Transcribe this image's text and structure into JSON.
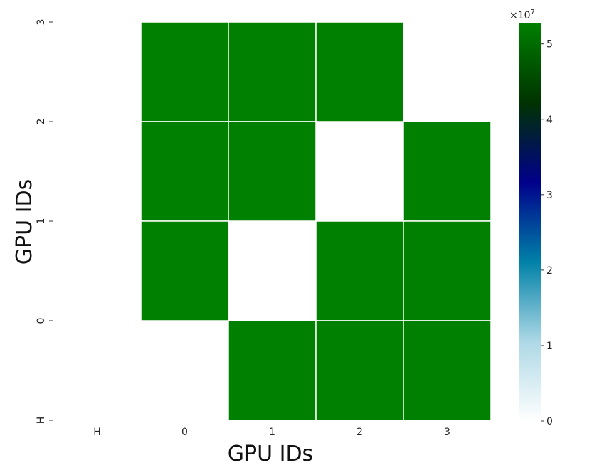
{
  "chart_data": {
    "type": "heatmap",
    "xlabel": "GPU IDs",
    "ylabel": "GPU IDs",
    "x_categories": [
      "H",
      "0",
      "1",
      "2",
      "3"
    ],
    "y_categories": [
      "H",
      "0",
      "1",
      "2",
      "3"
    ],
    "cells": [
      {
        "x": "0",
        "y": "3",
        "value": 52800000
      },
      {
        "x": "1",
        "y": "3",
        "value": 52800000
      },
      {
        "x": "2",
        "y": "3",
        "value": 52800000
      },
      {
        "x": "0",
        "y": "2",
        "value": 52800000
      },
      {
        "x": "1",
        "y": "2",
        "value": 52800000
      },
      {
        "x": "3",
        "y": "2",
        "value": 52800000
      },
      {
        "x": "0",
        "y": "1",
        "value": 52800000
      },
      {
        "x": "2",
        "y": "1",
        "value": 52800000
      },
      {
        "x": "3",
        "y": "1",
        "value": 52800000
      },
      {
        "x": "1",
        "y": "0",
        "value": 52800000
      },
      {
        "x": "2",
        "y": "0",
        "value": 52800000
      },
      {
        "x": "3",
        "y": "0",
        "value": 52800000
      }
    ],
    "colorbar": {
      "min": 0,
      "max": 52800000,
      "ticks": [
        0,
        1,
        2,
        3,
        4,
        5
      ],
      "exponent_label": "×10",
      "exponent_power": "7",
      "colormap_stops": [
        "#ffffff",
        "#add8e6",
        "#0081a7",
        "#00008b",
        "#003300",
        "#008000"
      ]
    },
    "cell_color": "#008000",
    "grid_line_color": "#ffffff",
    "grid": false
  }
}
